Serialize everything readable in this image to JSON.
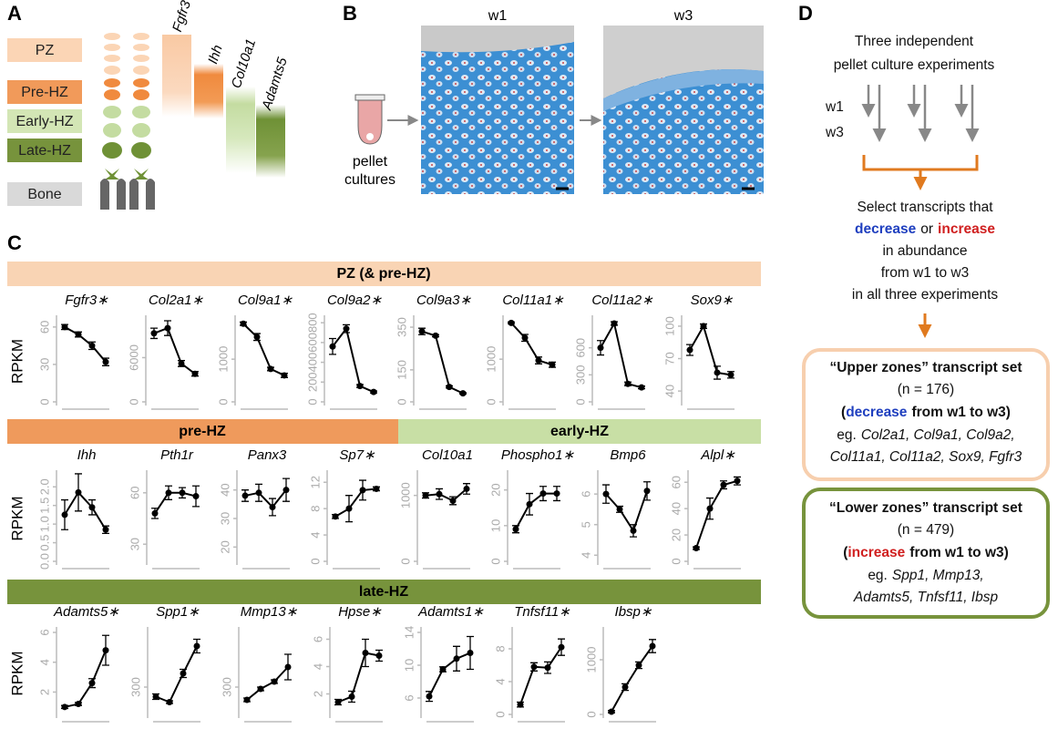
{
  "panel_labels": [
    "A",
    "B",
    "C",
    "D"
  ],
  "panel_a": {
    "zones": [
      "PZ",
      "Pre-HZ",
      "Early-HZ",
      "Late-HZ",
      "Bone"
    ],
    "genes": [
      "Fgfr3",
      "Ihh",
      "Col10a1",
      "Adamts5"
    ]
  },
  "panel_b": {
    "timepoints": [
      "w1",
      "w3"
    ],
    "culture_label": [
      "pellet",
      "cultures"
    ]
  },
  "panel_c": {
    "row_banners": [
      "PZ (& pre-HZ)",
      "pre-HZ",
      "early-HZ",
      "late-HZ"
    ]
  },
  "chart_data": [
    {
      "type": "line",
      "title": "Fgfr3∗",
      "ylabel": "RPKM",
      "values": [
        60,
        54,
        45,
        32
      ],
      "errors": [
        2,
        2,
        3,
        3
      ],
      "ylim": [
        0,
        65
      ],
      "yticks": [
        0,
        30,
        60
      ]
    },
    {
      "type": "line",
      "title": "Col2a1∗",
      "values": [
        9300,
        10000,
        5200,
        3800
      ],
      "errors": [
        700,
        1000,
        400,
        300
      ],
      "ylim": [
        0,
        11000
      ],
      "yticks": [
        0,
        6000
      ]
    },
    {
      "type": "line",
      "title": "Col9a1∗",
      "values": [
        1830,
        1520,
        770,
        620
      ],
      "errors": [
        40,
        80,
        40,
        50
      ],
      "ylim": [
        0,
        1900
      ],
      "yticks": [
        0,
        1000
      ]
    },
    {
      "type": "line",
      "title": "Col9a2∗",
      "values": [
        560,
        740,
        160,
        100
      ],
      "errors": [
        80,
        40,
        15,
        10
      ],
      "ylim": [
        0,
        820
      ],
      "yticks": [
        0,
        200,
        400,
        600,
        800
      ]
    },
    {
      "type": "line",
      "title": "Col9a3∗",
      "values": [
        330,
        310,
        70,
        40
      ],
      "errors": [
        15,
        5,
        5,
        3
      ],
      "ylim": [
        0,
        380
      ],
      "yticks": [
        0,
        150,
        350
      ]
    },
    {
      "type": "line",
      "title": "Col11a1∗",
      "values": [
        1850,
        1500,
        970,
        870
      ],
      "errors": [
        20,
        80,
        80,
        60
      ],
      "ylim": [
        0,
        1900
      ],
      "yticks": [
        0,
        1000
      ]
    },
    {
      "type": "line",
      "title": "Col11a2∗",
      "values": [
        600,
        870,
        200,
        160
      ],
      "errors": [
        80,
        20,
        20,
        15
      ],
      "ylim": [
        0,
        900
      ],
      "yticks": [
        0,
        300,
        600
      ]
    },
    {
      "type": "line",
      "title": "Sox9∗",
      "values": [
        78,
        100,
        57,
        55
      ],
      "errors": [
        5,
        2,
        6,
        3
      ],
      "ylim": [
        30,
        105
      ],
      "yticks": [
        40,
        70,
        100
      ]
    },
    {
      "type": "line",
      "title": "Ihh",
      "ylabel": "RPKM",
      "values": [
        1.25,
        1.85,
        1.45,
        0.85
      ],
      "errors": [
        0.4,
        0.5,
        0.2,
        0.1
      ],
      "ylim": [
        0,
        2.3
      ],
      "yticks": [
        {
          "value": 0,
          "label": "0.0"
        },
        {
          "value": 0.5,
          "label": "0.5"
        },
        {
          "value": 1,
          "label": "1.0"
        },
        {
          "value": 1.5,
          "label": "1.5"
        },
        {
          "value": 2,
          "label": "2.0"
        }
      ]
    },
    {
      "type": "line",
      "title": "Pth1r",
      "values": [
        48,
        60,
        60,
        58
      ],
      "errors": [
        3,
        4,
        3,
        6
      ],
      "ylim": [
        20,
        70
      ],
      "yticks": [
        30,
        60
      ]
    },
    {
      "type": "line",
      "title": "Panx3",
      "values": [
        38,
        39,
        34,
        40
      ],
      "errors": [
        2,
        3,
        3,
        4
      ],
      "ylim": [
        15,
        45
      ],
      "yticks": [
        20,
        30,
        40
      ]
    },
    {
      "type": "line",
      "title": "Sp7∗",
      "values": [
        6.8,
        8,
        10.8,
        11
      ],
      "errors": [
        0.3,
        2,
        1.5,
        0.3
      ],
      "ylim": [
        0,
        13
      ],
      "yticks": [
        0,
        4,
        8,
        12
      ]
    },
    {
      "type": "line",
      "title": "Col10a1",
      "values": [
        1000,
        1020,
        920,
        1100
      ],
      "errors": [
        40,
        80,
        60,
        80
      ],
      "ylim": [
        0,
        1300
      ],
      "yticks": [
        0,
        1000
      ]
    },
    {
      "type": "line",
      "title": "Phospho1∗",
      "values": [
        9,
        16,
        19,
        19
      ],
      "errors": [
        1,
        3,
        2,
        2
      ],
      "ylim": [
        0,
        24
      ],
      "yticks": [
        0,
        10,
        20
      ]
    },
    {
      "type": "line",
      "title": "Bmp6",
      "values": [
        6,
        5.5,
        4.8,
        6.1
      ],
      "errors": [
        0.3,
        0.1,
        0.2,
        0.3
      ],
      "ylim": [
        3.8,
        6.6
      ],
      "yticks": [
        4,
        5,
        6
      ]
    },
    {
      "type": "line",
      "title": "Alpl∗",
      "values": [
        10,
        40,
        58,
        61
      ],
      "errors": [
        1,
        8,
        3,
        3
      ],
      "ylim": [
        0,
        65
      ],
      "yticks": [
        0,
        20,
        40,
        60
      ]
    },
    {
      "type": "line",
      "title": "Adamts5∗",
      "ylabel": "RPKM",
      "values": [
        1,
        1.2,
        2.6,
        4.8
      ],
      "errors": [
        0.1,
        0.1,
        0.3,
        1
      ],
      "ylim": [
        0.5,
        6
      ],
      "yticks": [
        2,
        4,
        6
      ]
    },
    {
      "type": "line",
      "title": "Spp1∗",
      "values": [
        230,
        190,
        400,
        600
      ],
      "errors": [
        20,
        10,
        30,
        50
      ],
      "ylim": [
        100,
        700
      ],
      "yticks": [
        300
      ]
    },
    {
      "type": "line",
      "title": "Mmp13∗",
      "values": [
        230,
        290,
        330,
        410
      ],
      "errors": [
        10,
        10,
        10,
        70
      ],
      "ylim": [
        150,
        600
      ],
      "yticks": [
        300
      ]
    },
    {
      "type": "line",
      "title": "Hpse∗",
      "values": [
        1.4,
        1.8,
        5,
        4.8
      ],
      "errors": [
        0.2,
        0.4,
        1,
        0.4
      ],
      "ylim": [
        0.5,
        6.5
      ],
      "yticks": [
        2,
        4,
        6
      ]
    },
    {
      "type": "line",
      "title": "Adamts1∗",
      "values": [
        6.2,
        9.5,
        10.8,
        11.5
      ],
      "errors": [
        0.6,
        0.3,
        1.5,
        2
      ],
      "ylim": [
        4,
        14
      ],
      "yticks": [
        6,
        10,
        14
      ]
    },
    {
      "type": "line",
      "title": "Tnfsf11∗",
      "values": [
        1.2,
        5.8,
        5.7,
        8.2
      ],
      "errors": [
        0.3,
        0.5,
        0.7,
        1
      ],
      "ylim": [
        0,
        10
      ],
      "yticks": [
        0,
        4,
        8
      ]
    },
    {
      "type": "line",
      "title": "Ibsp∗",
      "values": [
        50,
        500,
        900,
        1250
      ],
      "errors": [
        20,
        60,
        60,
        120
      ],
      "ylim": [
        0,
        1500
      ],
      "yticks": [
        0,
        1000
      ]
    }
  ],
  "panel_d": {
    "header": [
      "Three independent",
      "pellet culture experiments"
    ],
    "arrow_labels": [
      "w1",
      "w3"
    ],
    "select": [
      "Select transcripts that",
      "decrease",
      "or",
      "increase",
      "in abundance",
      "from w1 to w3",
      "in all three experiments"
    ],
    "upper": {
      "title": "“Upper zones” transcript set",
      "n": "(n = 176)",
      "change": [
        "(",
        "decrease",
        "from w1 to w3)"
      ],
      "eg": "eg.",
      "examples": [
        "Col2a1, Col9a1, Col9a2,",
        "Col11a1, Col11a2, Sox9, Fgfr3"
      ]
    },
    "lower": {
      "title": "“Lower zones” transcript set",
      "n": "(n = 479)",
      "change": [
        "(",
        "increase",
        "from w1 to w3)"
      ],
      "eg": "eg.",
      "examples": [
        "Spp1, Mmp13,",
        "Adamts5,  Tnfsf11, Ibsp"
      ]
    }
  }
}
